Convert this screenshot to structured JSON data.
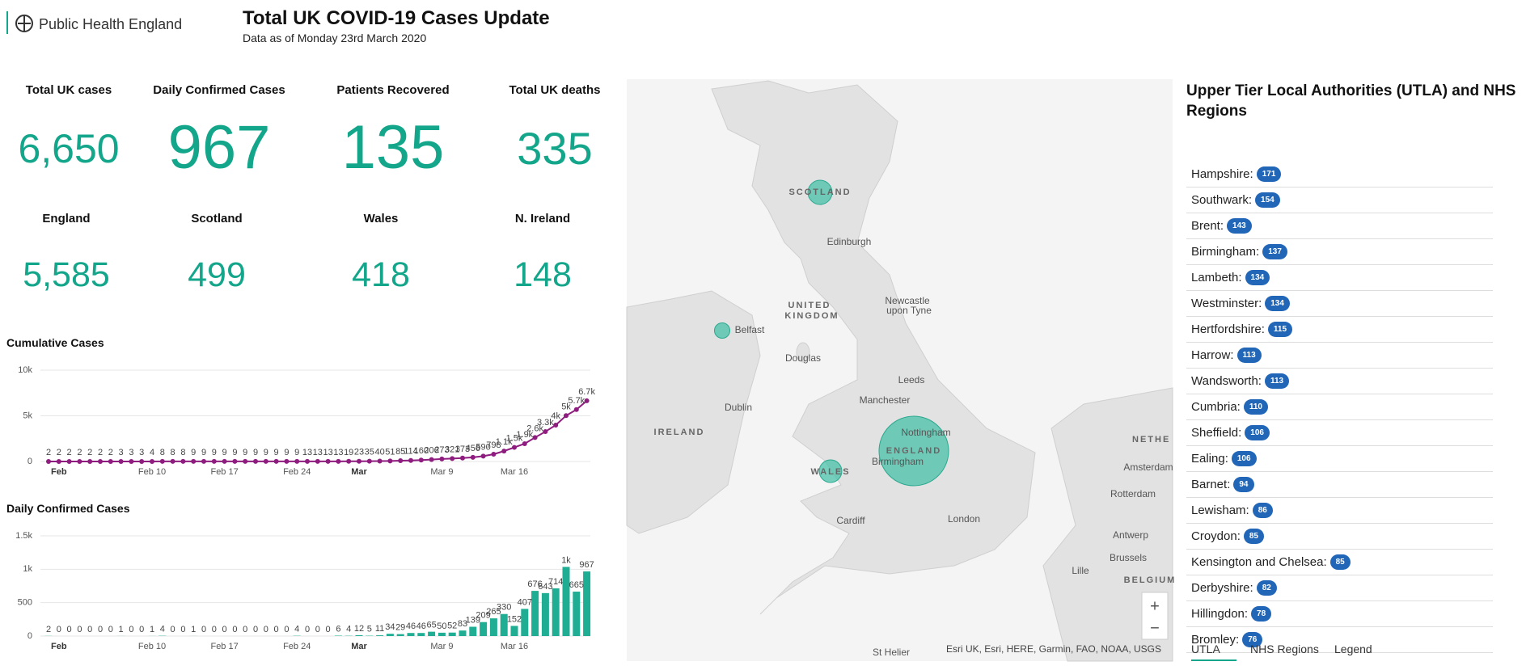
{
  "header": {
    "logo_text": "Public Health England",
    "title": "Total UK COVID-19 Cases Update",
    "subtitle": "Data as of Monday 23rd March 2020"
  },
  "kpis": [
    {
      "label": "Total UK cases",
      "value": 6650,
      "value_label": "6,650"
    },
    {
      "label": "Daily Confirmed Cases",
      "value": 967
    },
    {
      "label": "Patients Recovered",
      "value": 135
    },
    {
      "label": "Total UK deaths",
      "value": 335
    }
  ],
  "nations": [
    {
      "label": "England",
      "value": 5585,
      "value_label": "5,585"
    },
    {
      "label": "Scotland",
      "value": 499
    },
    {
      "label": "Wales",
      "value": 418
    },
    {
      "label": "N. Ireland",
      "value": 148
    }
  ],
  "chart_data": [
    {
      "type": "line",
      "title": "Cumulative Cases",
      "color": "#8e1d7f",
      "grid": true,
      "categories": [
        null,
        "Feb",
        null,
        null,
        null,
        null,
        null,
        null,
        null,
        null,
        "Feb 10",
        null,
        null,
        null,
        null,
        null,
        null,
        "Feb 17",
        null,
        null,
        null,
        null,
        null,
        null,
        "Feb 24",
        null,
        null,
        null,
        null,
        null,
        "Mar",
        null,
        null,
        null,
        null,
        null,
        null,
        null,
        "Mar 9",
        null,
        null,
        null,
        null,
        null,
        null,
        "Mar 16",
        null,
        null,
        null,
        null,
        null,
        null,
        null
      ],
      "bold_categories": [
        "Feb",
        "Mar"
      ],
      "values": [
        2,
        2,
        2,
        2,
        2,
        2,
        2,
        3,
        3,
        3,
        4,
        8,
        8,
        8,
        9,
        9,
        9,
        9,
        9,
        9,
        9,
        9,
        9,
        9,
        9,
        13,
        13,
        13,
        13,
        19,
        23,
        35,
        40,
        51,
        85,
        114,
        160,
        206,
        273,
        321,
        373,
        456,
        590,
        798,
        1140,
        1543,
        1950,
        2626,
        3269,
        3983,
        5018,
        5683,
        6650
      ],
      "value_labels": [
        "2",
        "2",
        "2",
        "2",
        "2",
        "2",
        "2",
        "3",
        "3",
        "3",
        "4",
        "8",
        "8",
        "8",
        "9",
        "9",
        "9",
        "9",
        "9",
        "9",
        "9",
        "9",
        "9",
        "9",
        "9",
        "13",
        "13",
        "13",
        "13",
        "19",
        "23",
        "35",
        "40",
        "51",
        "85",
        "114",
        "160",
        "206",
        "273",
        "321",
        "373",
        "456",
        "590",
        "798",
        "1.1k",
        "1.5k",
        "1.9k",
        "2.6k",
        "3.3k",
        "4k",
        "5k",
        "5.7k",
        "6.7k"
      ],
      "ylim": [
        0,
        10000
      ],
      "yticks": [
        0,
        {
          "value": 5000,
          "label": "5k"
        },
        {
          "value": 10000,
          "label": "10k"
        }
      ]
    },
    {
      "type": "bar",
      "title": "Daily Confirmed Cases",
      "color": "#1fae93",
      "grid": true,
      "categories": [
        null,
        "Feb",
        null,
        null,
        null,
        null,
        null,
        null,
        null,
        null,
        "Feb 10",
        null,
        null,
        null,
        null,
        null,
        null,
        "Feb 17",
        null,
        null,
        null,
        null,
        null,
        null,
        "Feb 24",
        null,
        null,
        null,
        null,
        null,
        "Mar",
        null,
        null,
        null,
        null,
        null,
        null,
        null,
        "Mar 9",
        null,
        null,
        null,
        null,
        null,
        null,
        "Mar 16",
        null,
        null,
        null,
        null,
        null,
        null,
        null
      ],
      "bold_categories": [
        "Feb",
        "Mar"
      ],
      "values": [
        2,
        0,
        0,
        0,
        0,
        0,
        0,
        1,
        0,
        0,
        1,
        4,
        0,
        0,
        1,
        0,
        0,
        0,
        0,
        0,
        0,
        0,
        0,
        0,
        4,
        0,
        0,
        0,
        6,
        4,
        12,
        5,
        11,
        34,
        29,
        46,
        46,
        65,
        50,
        52,
        83,
        139,
        209,
        265,
        330,
        152,
        407,
        676,
        643,
        714,
        1035,
        665,
        967
      ],
      "value_labels": [
        "2",
        "0",
        "0",
        "0",
        "0",
        "0",
        "0",
        "1",
        "0",
        "0",
        "1",
        "4",
        "0",
        "0",
        "1",
        "0",
        "0",
        "0",
        "0",
        "0",
        "0",
        "0",
        "0",
        "0",
        "4",
        "0",
        "0",
        "0",
        "6",
        "4",
        "12",
        "5",
        "11",
        "34",
        "29",
        "46",
        "46",
        "65",
        "50",
        "52",
        "83",
        "139",
        "209",
        "265",
        "330",
        "152",
        "407",
        "676",
        "643",
        "714",
        "1k",
        "665",
        "967"
      ],
      "ylim": [
        0,
        1500
      ],
      "yticks": [
        0,
        500,
        {
          "value": 1000,
          "label": "1k"
        },
        {
          "value": 1500,
          "label": "1.5k"
        }
      ]
    }
  ],
  "map": {
    "labels": [
      "SCOTLAND",
      "Edinburgh",
      "UNITED",
      "KINGDOM",
      "Newcastle",
      "upon Tyne",
      "Belfast",
      "Douglas",
      "Leeds",
      "Manchester",
      "Dublin",
      "IRELAND",
      "Nottingham",
      "ENGLAND",
      "Birmingham",
      "WALES",
      "Cardiff",
      "London",
      "NETHE",
      "Amsterdam",
      "Rotterdam",
      "Antwerp",
      "Brussels",
      "Lille",
      "BELGIUM",
      "St Helier"
    ],
    "attribution": "Esri UK, Esri, HERE, Garmin, FAO, NOAA, USGS",
    "zoom_in": "+",
    "zoom_out": "−"
  },
  "utla": {
    "title": "Upper Tier Local Authorities (UTLA) and NHS Regions",
    "items": [
      {
        "name": "Hampshire:",
        "count": 171
      },
      {
        "name": "Southwark:",
        "count": 154
      },
      {
        "name": "Brent:",
        "count": 143
      },
      {
        "name": "Birmingham:",
        "count": 137
      },
      {
        "name": "Lambeth:",
        "count": 134
      },
      {
        "name": "Westminster:",
        "count": 134
      },
      {
        "name": "Hertfordshire:",
        "count": 115
      },
      {
        "name": "Harrow:",
        "count": 113
      },
      {
        "name": "Wandsworth:",
        "count": 113
      },
      {
        "name": "Cumbria:",
        "count": 110
      },
      {
        "name": "Sheffield:",
        "count": 106
      },
      {
        "name": "Ealing:",
        "count": 106
      },
      {
        "name": "Barnet:",
        "count": 94
      },
      {
        "name": "Lewisham:",
        "count": 86
      },
      {
        "name": "Croydon:",
        "count": 85
      },
      {
        "name": "Kensington and Chelsea:",
        "count": 85
      },
      {
        "name": "Derbyshire:",
        "count": 82
      },
      {
        "name": "Hillingdon:",
        "count": 78
      },
      {
        "name": "Bromley:",
        "count": 76
      }
    ],
    "tabs": [
      "UTLA",
      "NHS Regions",
      "Legend"
    ]
  }
}
